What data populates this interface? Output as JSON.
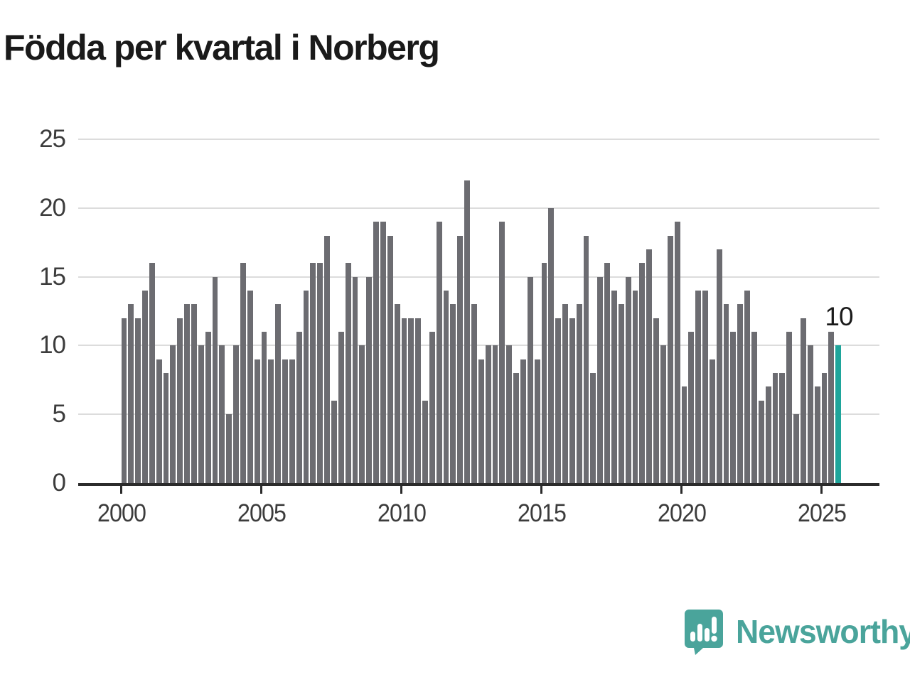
{
  "title": "Födda per kvartal i Norberg",
  "chart_data": {
    "type": "bar",
    "title": "Födda per kvartal i Norberg",
    "x_start": "2000 Q1",
    "x_end": "2025 Q3",
    "period": "quarterly",
    "values": [
      12,
      13,
      12,
      14,
      16,
      9,
      8,
      10,
      12,
      13,
      13,
      10,
      11,
      15,
      10,
      5,
      10,
      16,
      14,
      9,
      11,
      9,
      13,
      9,
      9,
      11,
      14,
      16,
      16,
      18,
      6,
      11,
      16,
      15,
      10,
      15,
      19,
      19,
      18,
      13,
      12,
      12,
      12,
      6,
      11,
      19,
      14,
      13,
      18,
      22,
      13,
      9,
      10,
      10,
      19,
      10,
      8,
      9,
      15,
      9,
      16,
      20,
      12,
      13,
      12,
      13,
      18,
      8,
      15,
      16,
      14,
      13,
      15,
      14,
      16,
      17,
      12,
      10,
      18,
      19,
      7,
      11,
      14,
      14,
      9,
      17,
      13,
      11,
      13,
      14,
      11,
      6,
      7,
      8,
      8,
      11,
      5,
      12,
      10,
      7,
      8,
      11,
      10
    ],
    "xticks": [
      2000,
      2005,
      2010,
      2015,
      2020,
      2025
    ],
    "yticks": [
      0,
      5,
      10,
      15,
      20,
      25
    ],
    "ylim": [
      0,
      25
    ],
    "grid": "horizontal",
    "legend": "none",
    "bar_color": "#6c6c71",
    "highlight_color": "#1ea59b",
    "highlight_last_bar": true,
    "last_value_label": "10"
  },
  "annotation": {
    "text": "10"
  },
  "footer": {
    "brand": "Newsworthy",
    "brand_color": "#4aa49b"
  }
}
